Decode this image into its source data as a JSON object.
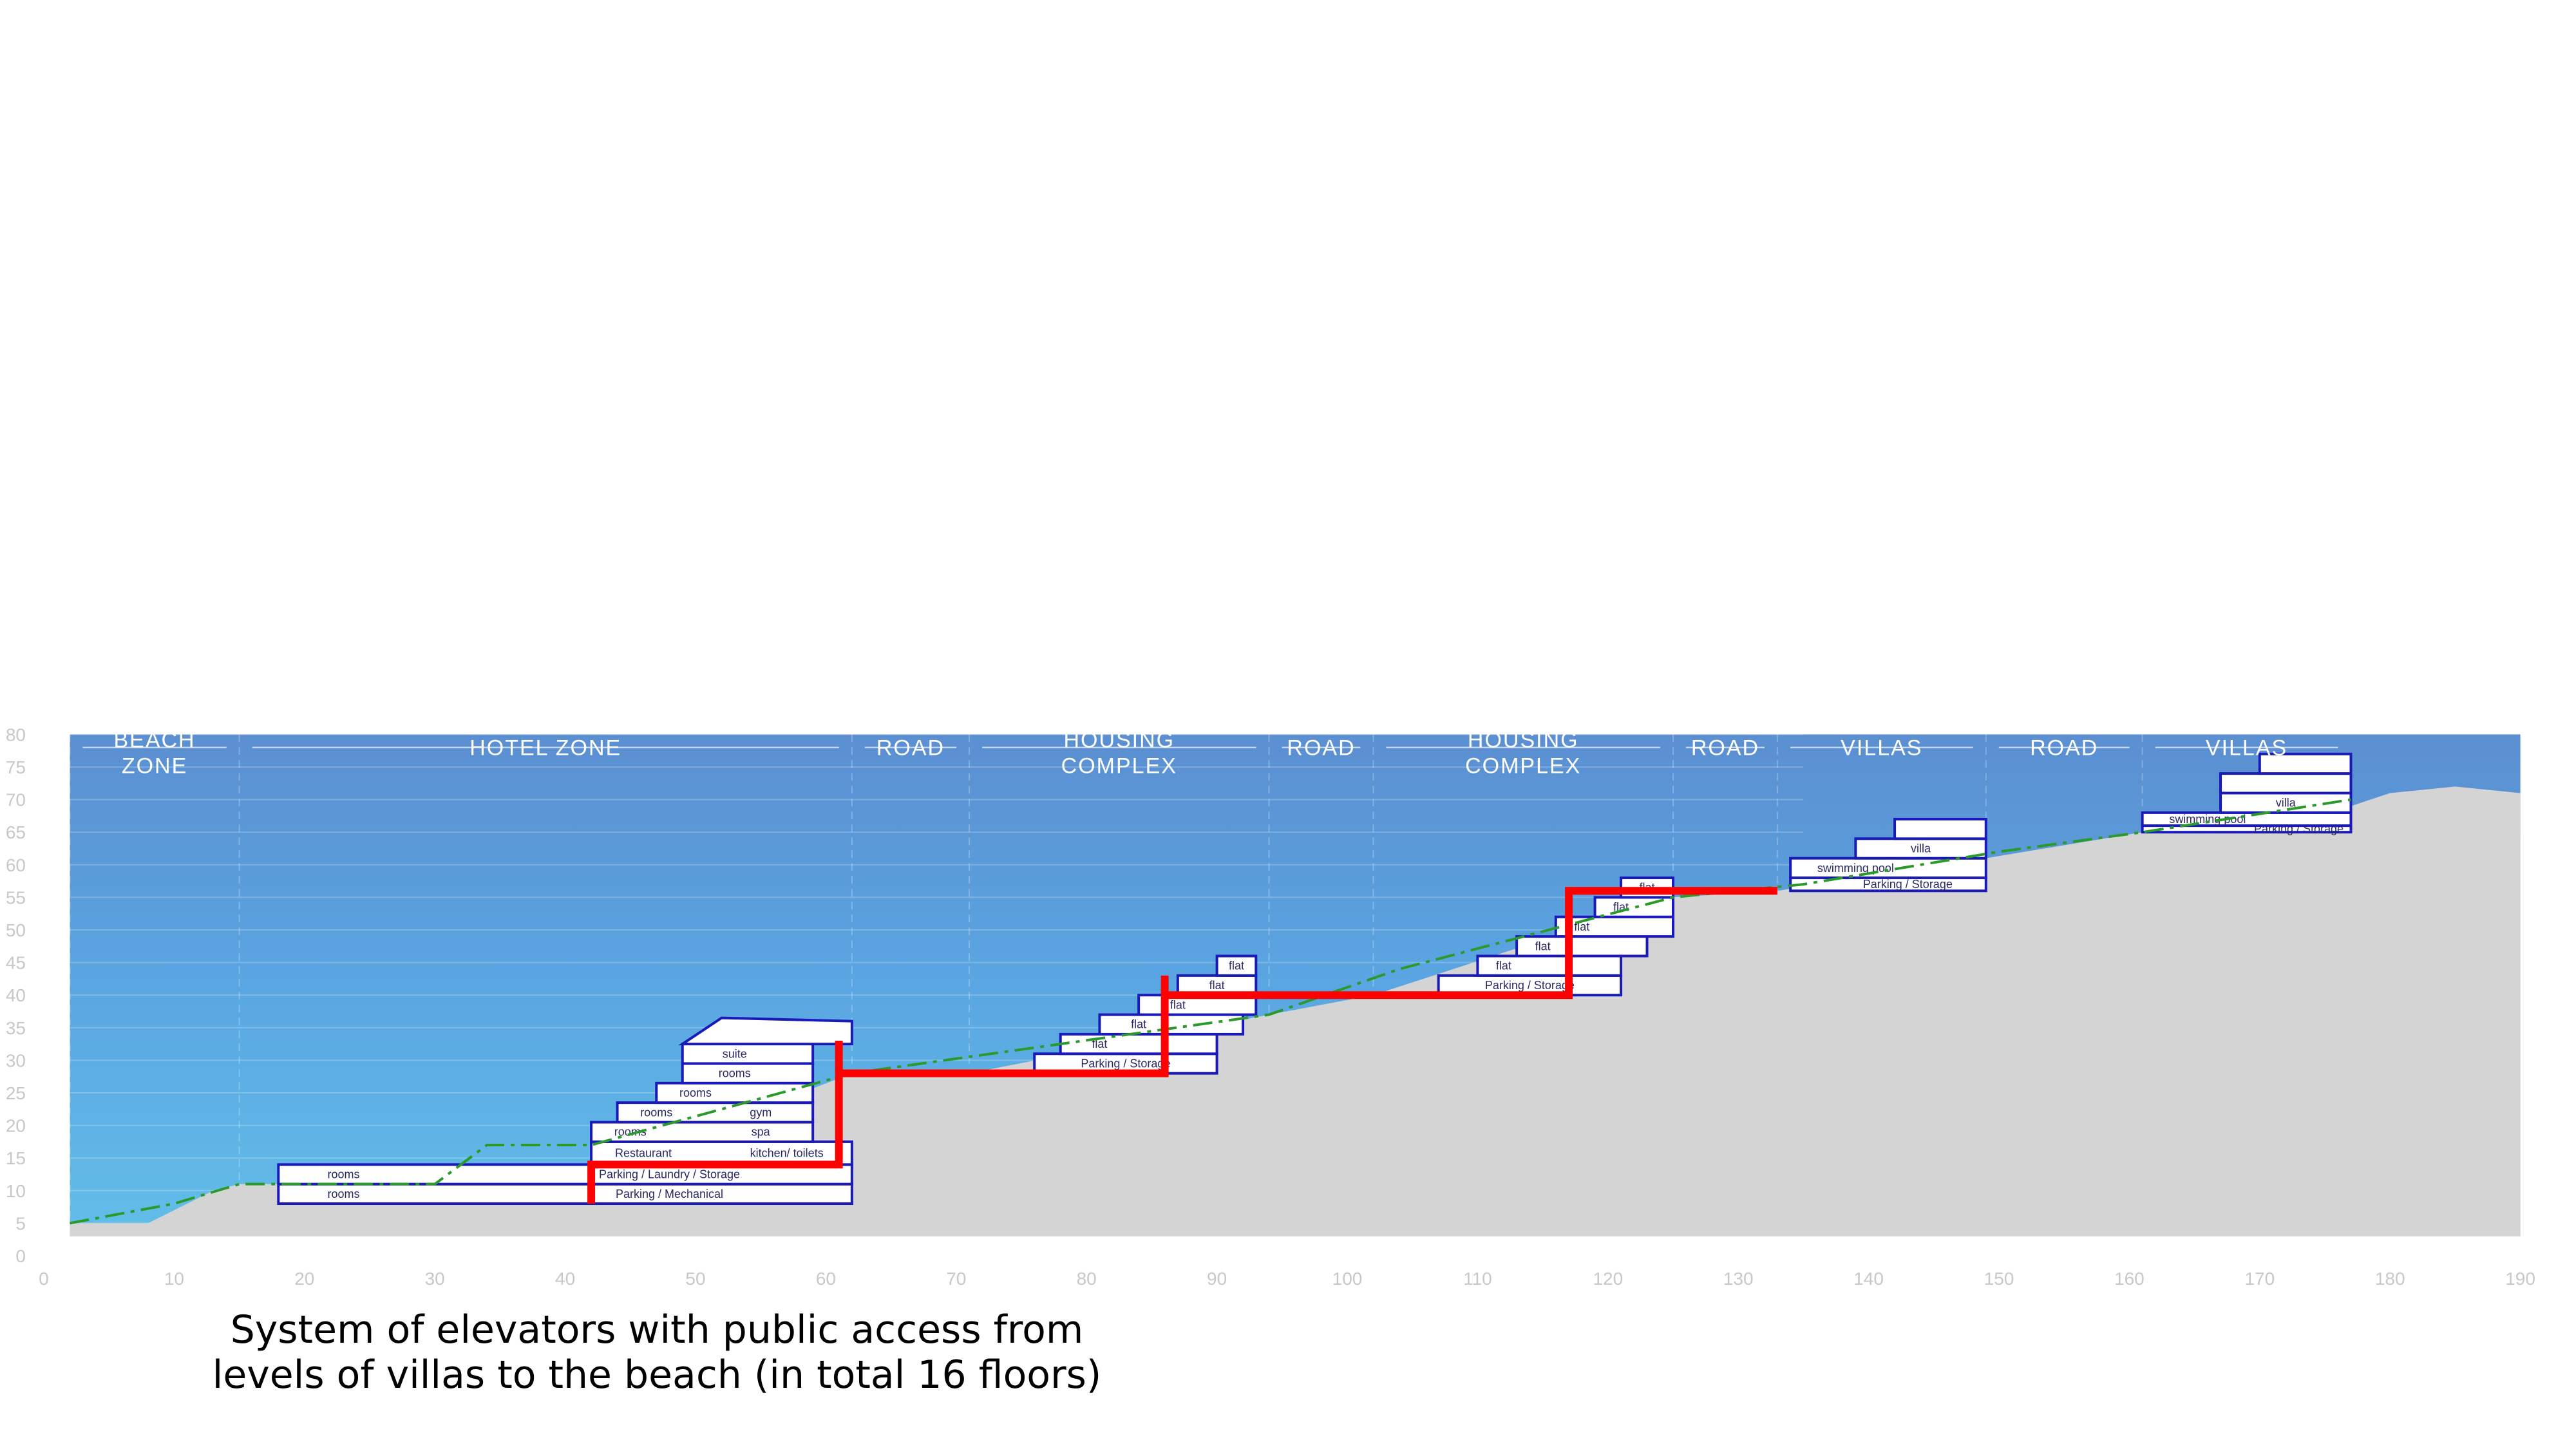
{
  "zones": [
    {
      "id": "beach",
      "lines": [
        "BEACH",
        "ZONE"
      ],
      "from": 2,
      "to": 15
    },
    {
      "id": "hotel",
      "lines": [
        "HOTEL ZONE"
      ],
      "from": 15,
      "to": 62
    },
    {
      "id": "road1",
      "lines": [
        "ROAD"
      ],
      "from": 62,
      "to": 71
    },
    {
      "id": "housing1",
      "lines": [
        "HOUSING",
        "COMPLEX"
      ],
      "from": 71,
      "to": 94
    },
    {
      "id": "road2",
      "lines": [
        "ROAD"
      ],
      "from": 94,
      "to": 102
    },
    {
      "id": "housing2",
      "lines": [
        "HOUSING",
        "COMPLEX"
      ],
      "from": 102,
      "to": 125
    },
    {
      "id": "road3",
      "lines": [
        "ROAD"
      ],
      "from": 125,
      "to": 133
    },
    {
      "id": "villas1",
      "lines": [
        "VILLAS"
      ],
      "from": 133,
      "to": 149
    },
    {
      "id": "road4",
      "lines": [
        "ROAD"
      ],
      "from": 149,
      "to": 161
    },
    {
      "id": "villas2",
      "lines": [
        "VILLAS"
      ],
      "from": 161,
      "to": 177
    }
  ],
  "x_ticks": [
    0,
    10,
    20,
    30,
    40,
    50,
    60,
    70,
    80,
    90,
    100,
    110,
    120,
    130,
    140,
    150,
    160,
    170,
    180,
    190
  ],
  "y_ticks": [
    0,
    5,
    10,
    15,
    20,
    25,
    30,
    35,
    40,
    45,
    50,
    55,
    60,
    65,
    70,
    75,
    80
  ],
  "terrain": [
    [
      2,
      5
    ],
    [
      8,
      5
    ],
    [
      11,
      8
    ],
    [
      13,
      10
    ],
    [
      15,
      11
    ],
    [
      40,
      11
    ],
    [
      62,
      28
    ],
    [
      71,
      28
    ],
    [
      94,
      37
    ],
    [
      102,
      40
    ],
    [
      125,
      55
    ],
    [
      133,
      56
    ],
    [
      149,
      61
    ],
    [
      161,
      65
    ],
    [
      177,
      69
    ],
    [
      180,
      71
    ],
    [
      185,
      72
    ],
    [
      190,
      71
    ]
  ],
  "hotel": {
    "levels": [
      {
        "y0": 8,
        "y1": 11,
        "x0": 18,
        "x1": 62,
        "rooms": [
          {
            "label": "rooms",
            "x": 23
          },
          {
            "label": "Parking / Mechanical",
            "x": 48
          }
        ]
      },
      {
        "y0": 11,
        "y1": 14,
        "x0": 18,
        "x1": 62,
        "rooms": [
          {
            "label": "rooms",
            "x": 23
          },
          {
            "label": "Parking / Laundry / Storage",
            "x": 48
          }
        ]
      },
      {
        "y0": 14,
        "y1": 17.5,
        "x0": 42,
        "x1": 62,
        "rooms": [
          {
            "label": "Restaurant",
            "x": 46
          },
          {
            "label": "kitchen/ toilets",
            "x": 57
          }
        ]
      },
      {
        "y0": 17.5,
        "y1": 20.5,
        "x0": 42,
        "x1": 59,
        "rooms": [
          {
            "label": "rooms",
            "x": 45
          },
          {
            "label": "spa",
            "x": 55
          }
        ]
      },
      {
        "y0": 20.5,
        "y1": 23.5,
        "x0": 44,
        "x1": 59,
        "rooms": [
          {
            "label": "rooms",
            "x": 47
          },
          {
            "label": "gym",
            "x": 55
          }
        ]
      },
      {
        "y0": 23.5,
        "y1": 26.5,
        "x0": 47,
        "x1": 59,
        "rooms": [
          {
            "label": "rooms",
            "x": 50
          }
        ]
      },
      {
        "y0": 26.5,
        "y1": 29.5,
        "x0": 49,
        "x1": 59,
        "rooms": [
          {
            "label": "rooms",
            "x": 53
          }
        ]
      },
      {
        "y0": 29.5,
        "y1": 32.5,
        "x0": 49,
        "x1": 59,
        "rooms": [
          {
            "label": "suite",
            "x": 53
          }
        ]
      }
    ]
  },
  "housing1": {
    "levels": [
      {
        "y0": 28,
        "y1": 31,
        "x0": 76,
        "x1": 90,
        "label": "Parking / Storage",
        "lx": 83
      },
      {
        "y0": 31,
        "y1": 34,
        "x0": 78,
        "x1": 90,
        "label": "flat",
        "lx": 81
      },
      {
        "y0": 34,
        "y1": 37,
        "x0": 81,
        "x1": 92,
        "label": "flat",
        "lx": 84
      },
      {
        "y0": 37,
        "y1": 40,
        "x0": 84,
        "x1": 93,
        "label": "flat",
        "lx": 87
      },
      {
        "y0": 40,
        "y1": 43,
        "x0": 87,
        "x1": 93,
        "label": "flat",
        "lx": 90
      },
      {
        "y0": 43,
        "y1": 46,
        "x0": 90,
        "x1": 93,
        "label": "flat",
        "lx": 91.5
      }
    ]
  },
  "housing2": {
    "levels": [
      {
        "y0": 40,
        "y1": 43,
        "x0": 107,
        "x1": 121,
        "label": "Parking / Storage",
        "lx": 114
      },
      {
        "y0": 43,
        "y1": 46,
        "x0": 110,
        "x1": 121,
        "label": "flat",
        "lx": 112
      },
      {
        "y0": 46,
        "y1": 49,
        "x0": 113,
        "x1": 123,
        "label": "flat",
        "lx": 115
      },
      {
        "y0": 49,
        "y1": 52,
        "x0": 116,
        "x1": 125,
        "label": "flat",
        "lx": 118
      },
      {
        "y0": 52,
        "y1": 55,
        "x0": 119,
        "x1": 125,
        "label": "flat",
        "lx": 121
      },
      {
        "y0": 55,
        "y1": 58,
        "x0": 121,
        "x1": 125,
        "label": "flat",
        "lx": 123
      }
    ]
  },
  "villa1": {
    "levels": [
      {
        "y0": 56,
        "y1": 58,
        "x0": 134,
        "x1": 149,
        "label": "Parking / Storage",
        "lx": 143
      },
      {
        "y0": 58,
        "y1": 61,
        "x0": 134,
        "x1": 149,
        "label": "swimming pool",
        "lx": 139
      },
      {
        "y0": 61,
        "y1": 64,
        "x0": 139,
        "x1": 149,
        "label": "villa",
        "lx": 144
      },
      {
        "y0": 64,
        "y1": 67,
        "x0": 142,
        "x1": 149,
        "label": "",
        "lx": 145
      }
    ]
  },
  "villa2": {
    "levels": [
      {
        "y0": 65,
        "y1": 66,
        "x0": 161,
        "x1": 177,
        "label": "Parking / Storage",
        "lx": 173
      },
      {
        "y0": 66,
        "y1": 68,
        "x0": 161,
        "x1": 177,
        "label": "swimming pool",
        "lx": 166
      },
      {
        "y0": 68,
        "y1": 71,
        "x0": 167,
        "x1": 177,
        "label": "villa",
        "lx": 172
      },
      {
        "y0": 71,
        "y1": 74,
        "x0": 167,
        "x1": 177,
        "label": "",
        "lx": 172
      },
      {
        "y0": 74,
        "y1": 77,
        "x0": 170,
        "x1": 177,
        "label": "",
        "lx": 173
      }
    ]
  },
  "elevator_path": [
    [
      42,
      8
    ],
    [
      42,
      14
    ],
    [
      61,
      14
    ],
    [
      61,
      33
    ],
    [
      61,
      28
    ],
    [
      86,
      28
    ],
    [
      86,
      43
    ],
    [
      86,
      40
    ],
    [
      117,
      40
    ],
    [
      117,
      55
    ],
    [
      117,
      56
    ],
    [
      133,
      56
    ]
  ],
  "access_path": [
    [
      2,
      5
    ],
    [
      10,
      8
    ],
    [
      15,
      11
    ],
    [
      30,
      11
    ],
    [
      34,
      17
    ],
    [
      42,
      17
    ],
    [
      62,
      28
    ],
    [
      94,
      37
    ],
    [
      104,
      44
    ],
    [
      125,
      55
    ],
    [
      135,
      57
    ],
    [
      150,
      62
    ],
    [
      161,
      65
    ],
    [
      177,
      70
    ]
  ],
  "caption": {
    "line1": "System of elevators with public access from",
    "line2": "levels of villas to the beach (in total 16 floors)"
  }
}
